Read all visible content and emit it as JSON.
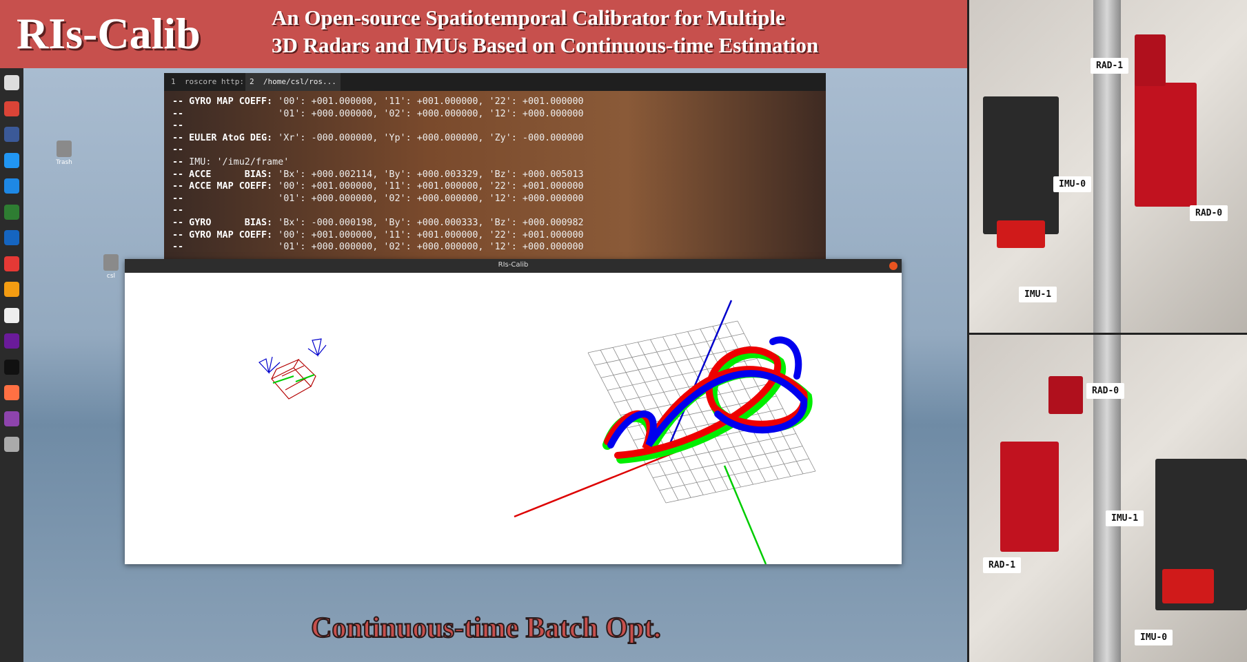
{
  "banner": {
    "logo": "RIs-Calib",
    "title_lines": [
      "An Open-source Spatiotemporal Calibrator for Multiple",
      "3D Radars and IMUs Based on Continuous-time Estimation"
    ]
  },
  "terminal": {
    "tabs": [
      "1  roscore http:...",
      "2  /home/csl/ros..."
    ],
    "lines": [
      {
        "bold": "-- GYRO MAP COEFF:",
        "rest": " '00': +001.000000, '11': +001.000000, '22': +001.000000"
      },
      {
        "bold": "--",
        "rest": "                 '01': +000.000000, '02': +000.000000, '12': +000.000000"
      },
      {
        "bold": "--",
        "rest": ""
      },
      {
        "bold": "-- EULER AtoG DEG:",
        "rest": " 'Xr': -000.000000, 'Yp': +000.000000, 'Zy': -000.000000"
      },
      {
        "bold": "--",
        "rest": ""
      },
      {
        "bold": "--",
        "rest": " IMU: '/imu2/frame'"
      },
      {
        "bold": "-- ACCE      BIAS:",
        "rest": " 'Bx': +000.002114, 'By': +000.003329, 'Bz': +000.005013"
      },
      {
        "bold": "-- ACCE MAP COEFF:",
        "rest": " '00': +001.000000, '11': +001.000000, '22': +001.000000"
      },
      {
        "bold": "--",
        "rest": "                 '01': +000.000000, '02': +000.000000, '12': +000.000000"
      },
      {
        "bold": "--",
        "rest": ""
      },
      {
        "bold": "-- GYRO      BIAS:",
        "rest": " 'Bx': -000.000198, 'By': +000.000333, 'Bz': +000.000982"
      },
      {
        "bold": "-- GYRO MAP COEFF:",
        "rest": " '00': +001.000000, '11': +001.000000, '22': +001.000000"
      },
      {
        "bold": "--",
        "rest": "                 '01': +000.000000, '02': +000.000000, '12': +000.000000"
      }
    ]
  },
  "viewer": {
    "title": "RIs-Calib"
  },
  "desktop_icons": [
    "Trash",
    "csl"
  ],
  "caption": "Continuous-time Batch Opt.",
  "photos": {
    "top": [
      "RAD-1",
      "IMU-0",
      "RAD-0",
      "IMU-1"
    ],
    "bottom": [
      "RAD-0",
      "IMU-1",
      "RAD-1",
      "IMU-0"
    ]
  }
}
